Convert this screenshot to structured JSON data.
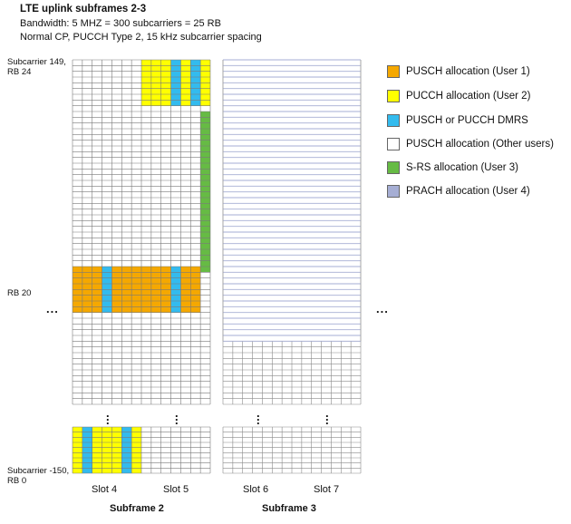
{
  "title": "LTE uplink subframes 2-3",
  "subtitle_line1": "Bandwidth: 5 MHZ = 300 subcarriers = 25 RB",
  "subtitle_line2": "Normal CP, PUCCH Type 2, 15 kHz subcarrier spacing",
  "labels": {
    "top_line1": "Subcarrier 149,",
    "top_line2": "RB 24",
    "rb20": "RB 20",
    "bottom_line1": "Subcarrier -150,",
    "bottom_line2": "RB 0",
    "ellipsis": "..."
  },
  "slots": [
    "Slot 4",
    "Slot 5",
    "Slot 6",
    "Slot 7"
  ],
  "subframes": [
    "Subframe 2",
    "Subframe 3"
  ],
  "legend": [
    {
      "label": "PUSCH allocation (User 1)",
      "color": "#f5a800"
    },
    {
      "label": "PUCCH allocation (User 2)",
      "color": "#ffff00"
    },
    {
      "label": "PUSCH or PUCCH DMRS",
      "color": "#33bbee"
    },
    {
      "label": "PUSCH allocation (Other users)",
      "color": "#ffffff"
    },
    {
      "label": "S-RS allocation (User 3)",
      "color": "#66bb44"
    },
    {
      "label": "PRACH allocation  (User 4)",
      "color": "#a6aed4"
    }
  ],
  "grid": {
    "symbols_per_subframe": 14,
    "rows_main": 60,
    "rows_bottom": 9
  }
}
